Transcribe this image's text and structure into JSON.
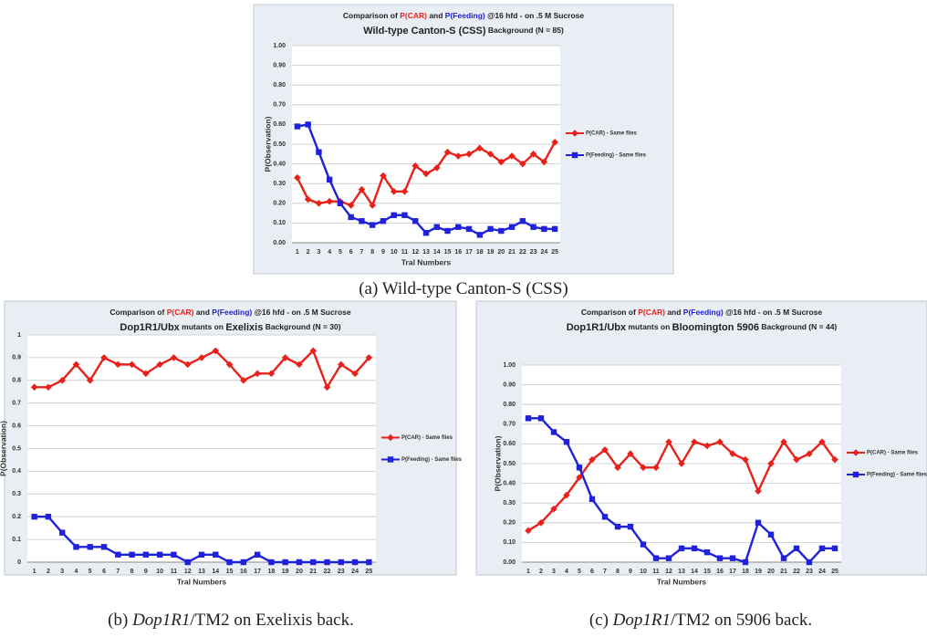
{
  "chart_data": [
    {
      "type": "line",
      "title": [
        {
          "text": "Comparison of ",
          "color": "#222222"
        },
        {
          "text": "P(CAR)",
          "color": "#e8221b"
        },
        {
          "text": " and ",
          "color": "#222222"
        },
        {
          "text": "P(Feeding)",
          "color": "#1f22d8"
        },
        {
          "text": " @16 hfd  - on .5 M Sucrose",
          "color": "#222222"
        }
      ],
      "subtitle": [
        "Wild-type Canton-S (CSS)",
        " Background (N = 85)"
      ],
      "x_label": "Tral Numbers",
      "y_label": "P(Observation)",
      "categories": [
        1,
        2,
        3,
        4,
        5,
        6,
        7,
        8,
        9,
        10,
        11,
        12,
        13,
        14,
        15,
        16,
        17,
        18,
        19,
        20,
        21,
        22,
        23,
        24,
        25
      ],
      "series": [
        {
          "name": "P(CAR) - Same flies",
          "color": "#e8221b",
          "marker": "diamond",
          "values": [
            0.33,
            0.22,
            0.2,
            0.21,
            0.21,
            0.19,
            0.27,
            0.19,
            0.34,
            0.26,
            0.26,
            0.39,
            0.35,
            0.38,
            0.46,
            0.44,
            0.45,
            0.48,
            0.45,
            0.41,
            0.44,
            0.4,
            0.45,
            0.41,
            0.51
          ]
        },
        {
          "name": "P(Feeding) - Same flies",
          "color": "#1f22d8",
          "marker": "square",
          "values": [
            0.59,
            0.6,
            0.46,
            0.32,
            0.2,
            0.13,
            0.11,
            0.09,
            0.11,
            0.14,
            0.14,
            0.11,
            0.05,
            0.08,
            0.06,
            0.08,
            0.07,
            0.04,
            0.07,
            0.06,
            0.08,
            0.11,
            0.08,
            0.07,
            0.07
          ]
        }
      ],
      "ylim": [
        0,
        1
      ],
      "yticks": [
        {
          "value": 0,
          "label": "0.00"
        },
        {
          "value": 0.1,
          "label": "0.10"
        },
        {
          "value": 0.2,
          "label": "0.20"
        },
        {
          "value": 0.3,
          "label": "0.30"
        },
        {
          "value": 0.4,
          "label": "0.40"
        },
        {
          "value": 0.5,
          "label": "0.50"
        },
        {
          "value": 0.6,
          "label": "0.60"
        },
        {
          "value": 0.7,
          "label": "0.70"
        },
        {
          "value": 0.8,
          "label": "0.80"
        },
        {
          "value": 0.9,
          "label": "0.90"
        },
        {
          "value": 1,
          "label": "1.00"
        }
      ],
      "grid": true,
      "legend": "right",
      "caption": [
        "(a) Wild-type Canton-S (CSS)"
      ]
    },
    {
      "type": "line",
      "title": [
        {
          "text": "Comparison of ",
          "color": "#222222"
        },
        {
          "text": "P(CAR)",
          "color": "#e8221b"
        },
        {
          "text": " and ",
          "color": "#222222"
        },
        {
          "text": "P(Feeding)",
          "color": "#1f22d8"
        },
        {
          "text": " @16 hfd  - on .5 M Sucrose",
          "color": "#222222"
        }
      ],
      "subtitle": [
        "Dop1R1/Ubx",
        " mutants on ",
        "Exelixis",
        " Background (N = 30)"
      ],
      "x_label": "Tral Numbers",
      "y_label": "P(Observation)",
      "categories": [
        1,
        2,
        3,
        4,
        5,
        6,
        7,
        8,
        9,
        10,
        11,
        12,
        13,
        14,
        15,
        16,
        17,
        18,
        19,
        20,
        21,
        22,
        23,
        24,
        25
      ],
      "series": [
        {
          "name": "P(CAR) - Same flies",
          "color": "#e8221b",
          "marker": "diamond",
          "values": [
            0.77,
            0.77,
            0.8,
            0.87,
            0.8,
            0.9,
            0.87,
            0.87,
            0.83,
            0.87,
            0.9,
            0.87,
            0.9,
            0.93,
            0.87,
            0.8,
            0.83,
            0.83,
            0.9,
            0.87,
            0.93,
            0.77,
            0.87,
            0.83,
            0.9
          ]
        },
        {
          "name": "P(Feeding) - Same flies",
          "color": "#1f22d8",
          "marker": "square",
          "values": [
            0.2,
            0.2,
            0.13,
            0.067,
            0.067,
            0.067,
            0.033,
            0.033,
            0.033,
            0.033,
            0.033,
            0,
            0.033,
            0.033,
            0,
            0,
            0.033,
            0,
            0,
            0,
            0,
            0,
            0,
            0,
            0
          ]
        }
      ],
      "ylim": [
        0,
        1
      ],
      "yticks": [
        0,
        0.1,
        0.2,
        0.3,
        0.4,
        0.5,
        0.6,
        0.7,
        0.8,
        0.9,
        1
      ],
      "grid": true,
      "legend": "right",
      "caption": [
        "(b) ",
        "Dop1R1",
        "/TM2 on Exelixis back."
      ]
    },
    {
      "type": "line",
      "title": [
        {
          "text": "Comparison of ",
          "color": "#222222"
        },
        {
          "text": "P(CAR)",
          "color": "#e8221b"
        },
        {
          "text": " and ",
          "color": "#222222"
        },
        {
          "text": "P(Feeding)",
          "color": "#1f22d8"
        },
        {
          "text": " @16 hfd  - on .5 M Sucrose",
          "color": "#222222"
        }
      ],
      "subtitle": [
        "Dop1R1/Ubx",
        " mutants on ",
        "Bloomington 5906",
        " Background (N = 44)"
      ],
      "x_label": "Tral Numbers",
      "y_label": "P(Observation)",
      "categories": [
        1,
        2,
        3,
        4,
        5,
        6,
        7,
        8,
        9,
        10,
        11,
        12,
        13,
        14,
        15,
        16,
        17,
        18,
        19,
        20,
        21,
        22,
        23,
        24,
        25
      ],
      "series": [
        {
          "name": "P(CAR) - Same flies",
          "color": "#e8221b",
          "marker": "diamond",
          "values": [
            0.16,
            0.2,
            0.27,
            0.34,
            0.43,
            0.52,
            0.57,
            0.48,
            0.55,
            0.48,
            0.48,
            0.61,
            0.5,
            0.61,
            0.59,
            0.61,
            0.55,
            0.52,
            0.36,
            0.5,
            0.61,
            0.52,
            0.55,
            0.61,
            0.52
          ]
        },
        {
          "name": "P(Feeding) - Same flies",
          "color": "#1f22d8",
          "marker": "square",
          "values": [
            0.73,
            0.73,
            0.66,
            0.61,
            0.48,
            0.32,
            0.23,
            0.18,
            0.18,
            0.09,
            0.02,
            0.02,
            0.07,
            0.07,
            0.05,
            0.02,
            0.02,
            0.0,
            0.2,
            0.14,
            0.02,
            0.07,
            0.0,
            0.07,
            0.07
          ]
        }
      ],
      "ylim": [
        0,
        1
      ],
      "yticks": [
        {
          "value": 0,
          "label": "0.00"
        },
        {
          "value": 0.1,
          "label": "0.10"
        },
        {
          "value": 0.2,
          "label": "0.20"
        },
        {
          "value": 0.3,
          "label": "0.30"
        },
        {
          "value": 0.4,
          "label": "0.40"
        },
        {
          "value": 0.5,
          "label": "0.50"
        },
        {
          "value": 0.6,
          "label": "0.60"
        },
        {
          "value": 0.7,
          "label": "0.70"
        },
        {
          "value": 0.8,
          "label": "0.80"
        },
        {
          "value": 0.9,
          "label": "0.90"
        },
        {
          "value": 1,
          "label": "1.00"
        }
      ],
      "grid": true,
      "legend": "right",
      "caption": [
        "(c) ",
        "Dop1R1",
        "/TM2 on 5906 back."
      ]
    }
  ]
}
